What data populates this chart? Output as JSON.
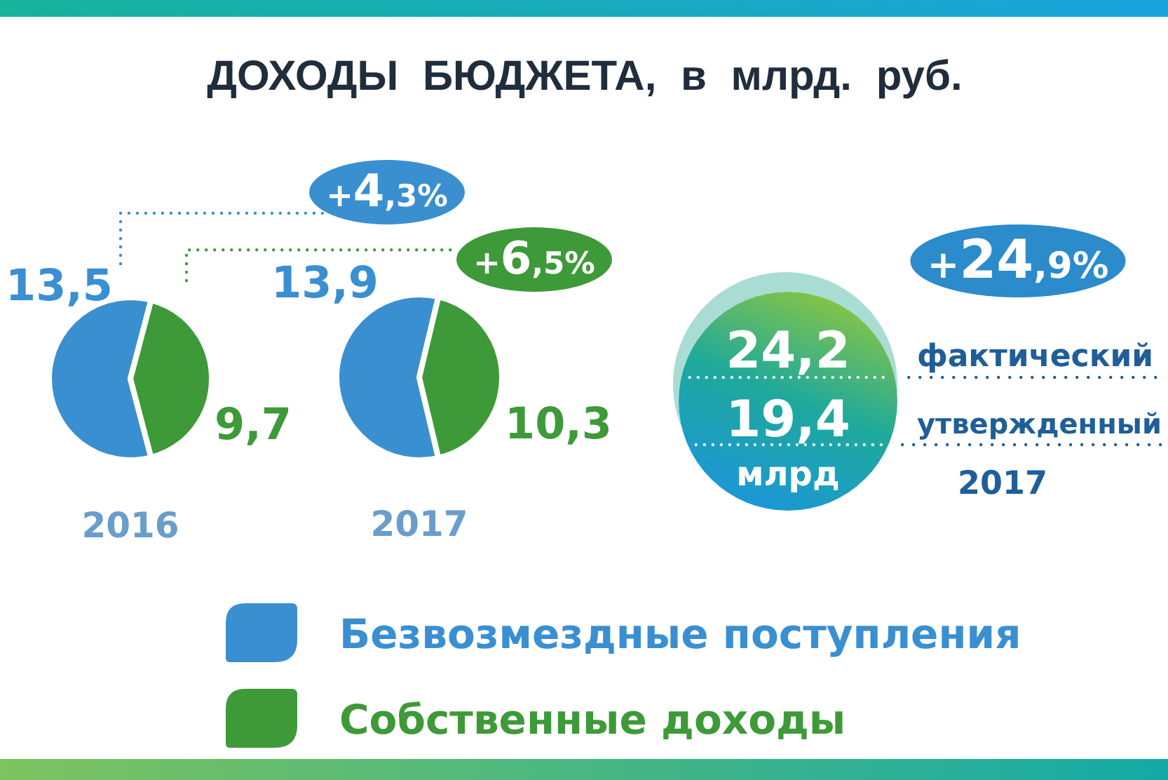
{
  "chart_data": [
    {
      "type": "pie",
      "title": "ДОХОДЫ БЮДЖЕТА, в млрд. руб.",
      "xlabel": "2016",
      "categories": [
        "Безвозмездные поступления",
        "Собственные доходы"
      ],
      "values": [
        13.5,
        9.7
      ],
      "value_labels": [
        "13,5",
        "9,7"
      ],
      "colors": [
        "#3a8fd1",
        "#3e9a38"
      ],
      "legend": "bottom"
    },
    {
      "type": "pie",
      "xlabel": "2017",
      "categories": [
        null,
        null
      ],
      "values": [
        13.9,
        10.3
      ],
      "value_labels": [
        "13,9",
        "10,3"
      ],
      "colors": [
        "#3a8fd1",
        "#3e9a38"
      ],
      "annotations": [
        "+4,3%",
        "+6,5%"
      ]
    },
    {
      "type": "other",
      "xlabel": "2017",
      "ylabel": "млрд",
      "categories": [
        "фактический",
        "утвержденный"
      ],
      "values": [
        24.2,
        19.4
      ],
      "value_labels": [
        "24,2",
        "19,4"
      ],
      "annotations": [
        "+24,9%"
      ]
    }
  ]
}
